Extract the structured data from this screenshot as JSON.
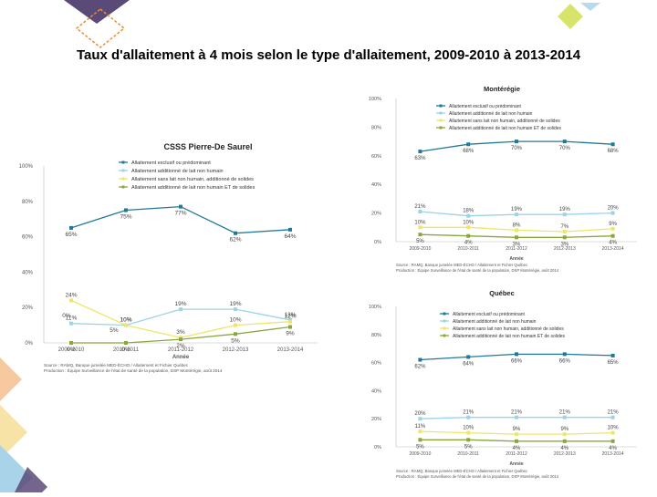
{
  "title": "Taux d'allaitement à 4 mois selon le type d'allaitement, 2009-2010 à 2013-2014",
  "colors": {
    "exclusif": "#1f7a99",
    "additionne_non_humain": "#9dd3e8",
    "sans_lait_humain": "#f0e56a",
    "solides": "#8aa83a",
    "deco_purple": "#5a4a78",
    "deco_orange": "#f28c2b",
    "deco_green": "#d6e56a",
    "deco_blue": "#6fb8d6"
  },
  "chart_data": [
    {
      "id": "csss",
      "type": "line",
      "title": "CSSS Pierre-De Saurel",
      "categories": [
        "2009-2010",
        "2010-2011",
        "2011-2012",
        "2012-2013",
        "2013-2014"
      ],
      "xlabel": "Année",
      "ylabel": "",
      "y_ticks": [
        "100%",
        "80%",
        "60%",
        "40%",
        "20%",
        "0%"
      ],
      "ylim": [
        0,
        100
      ],
      "legend_placement": "top",
      "grid": false,
      "series": [
        {
          "name": "Allaitement exclusif ou prédominant",
          "values": [
            65,
            75,
            77,
            62,
            64
          ],
          "labels": [
            "65%",
            "75%",
            "77%",
            "62%",
            "64%"
          ]
        },
        {
          "name": "Allaitement additionné de lait non humain",
          "values": [
            11,
            10,
            19,
            19,
            13
          ],
          "labels": [
            "11%",
            "10%",
            "19%",
            "19%",
            "13%"
          ]
        },
        {
          "name": "Allaitement sans lait non humain, additionné de solides",
          "values": [
            24,
            10,
            3,
            10,
            12
          ],
          "labels": [
            "24%",
            "10%",
            "3%",
            "10%",
            "12%"
          ]
        },
        {
          "name": "Allaitement additionné de lait non humain ET de solides",
          "values": [
            0,
            0,
            2,
            5,
            9
          ],
          "labels": [
            "0%",
            "0%",
            "2%",
            "5%",
            "9%"
          ]
        }
      ],
      "extra_labels": [
        "5%",
        "0%"
      ],
      "source": [
        "Source : RAMQ, Banque jumelée MED-ÉCHO / Allaitement et Fichier Québec",
        "Production : Équipe Surveillance de l'état de santé de la population, DSP Montérégie, août 2014"
      ]
    },
    {
      "id": "monteregie",
      "type": "line",
      "title": "Montérégie",
      "categories": [
        "2009-2010",
        "2010-2011",
        "2011-2012",
        "2012-2013",
        "2013-2014"
      ],
      "xlabel": "Année",
      "ylabel": "",
      "y_ticks": [
        "100%",
        "80%",
        "60%",
        "40%",
        "20%",
        "0%"
      ],
      "ylim": [
        0,
        100
      ],
      "legend_placement": "top",
      "grid": false,
      "series": [
        {
          "name": "Allaitement exclusif ou prédominant",
          "values": [
            63,
            68,
            70,
            70,
            68
          ],
          "labels": [
            "63%",
            "68%",
            "70%",
            "70%",
            "68%"
          ]
        },
        {
          "name": "Allaitement additionné de lait non humain",
          "values": [
            21,
            18,
            19,
            19,
            20
          ],
          "labels": [
            "21%",
            "18%",
            "19%",
            "19%",
            "20%"
          ]
        },
        {
          "name": "Allaitement sans lait non humain, additionné de solides",
          "values": [
            10,
            10,
            8,
            7,
            9
          ],
          "labels": [
            "10%",
            "10%",
            "8%",
            "7%",
            "9%"
          ]
        },
        {
          "name": "Allaitement additionné de lait non humain ET de solides",
          "values": [
            5,
            4,
            3,
            3,
            4
          ],
          "labels": [
            "5%",
            "4%",
            "3%",
            "3%",
            "4%"
          ]
        }
      ],
      "source": [
        "Source : RAMQ, Banque jumelée MED-ÉCHO / Allaitement et Fichier Québec",
        "Production : Équipe Surveillance de l'état de santé de la population, DSP Montérégie, août 2014"
      ]
    },
    {
      "id": "quebec",
      "type": "line",
      "title": "Québec",
      "categories": [
        "2009-2010",
        "2010-2011",
        "2011-2012",
        "2012-2013",
        "2013-2014"
      ],
      "xlabel": "Année",
      "ylabel": "",
      "y_ticks": [
        "100%",
        "80%",
        "60%",
        "40%",
        "20%",
        "0%"
      ],
      "ylim": [
        0,
        100
      ],
      "legend_placement": "top",
      "grid": false,
      "series": [
        {
          "name": "Allaitement exclusif ou prédominant",
          "values": [
            62,
            64,
            66,
            66,
            65
          ],
          "labels": [
            "62%",
            "64%",
            "66%",
            "66%",
            "65%"
          ]
        },
        {
          "name": "Allaitement additionné de lait non humain",
          "values": [
            20,
            21,
            21,
            21,
            21
          ],
          "labels": [
            "20%",
            "21%",
            "21%",
            "21%",
            "21%"
          ]
        },
        {
          "name": "Allaitement sans lait non humain, additionné de solides",
          "values": [
            11,
            10,
            9,
            9,
            10
          ],
          "labels": [
            "11%",
            "10%",
            "9%",
            "9%",
            "10%"
          ]
        },
        {
          "name": "Allaitement additionné de lait non humain ET de solides",
          "values": [
            5,
            5,
            4,
            4,
            4
          ],
          "labels": [
            "5%",
            "5%",
            "4%",
            "4%",
            "4%"
          ]
        }
      ],
      "source": [
        "Source : RAMQ, Banque jumelée MED-ÉCHO / Allaitement et Fichier Québec",
        "Production : Équipe Surveillance de l'état de santé de la population, DSP Montérégie, août 2014"
      ]
    }
  ]
}
